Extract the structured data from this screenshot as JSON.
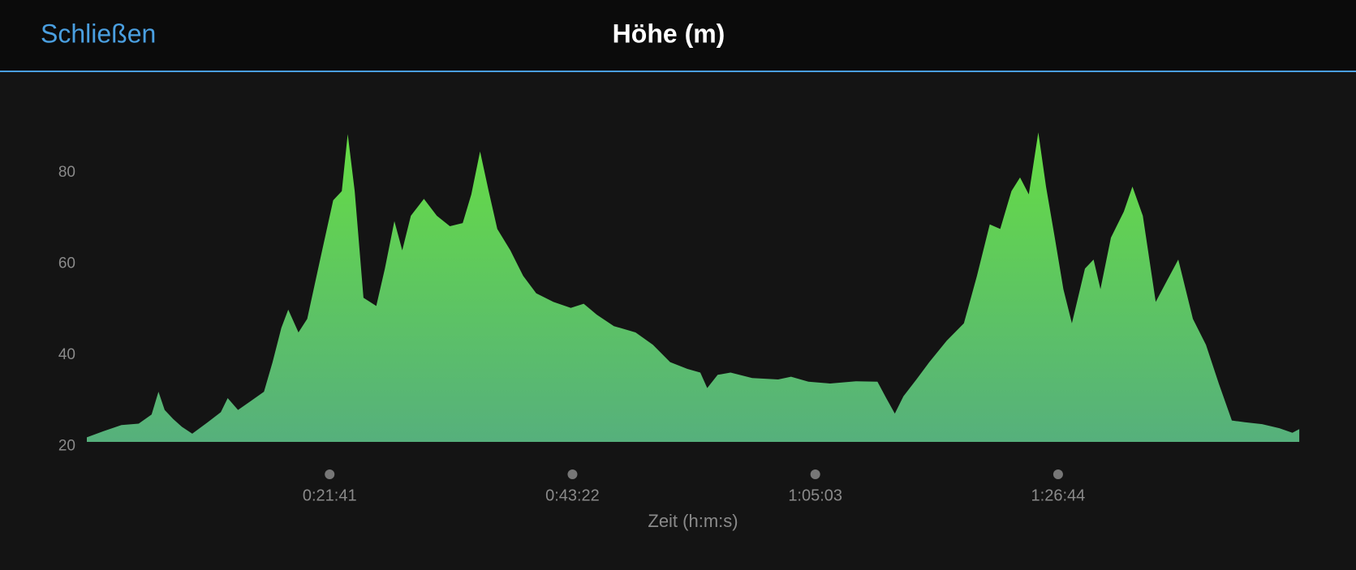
{
  "close_label": "Schließen",
  "chart_data": {
    "type": "area",
    "title": "Höhe (m)",
    "xlabel": "Zeit (h:m:s)",
    "x": [
      0,
      93,
      185,
      278,
      347,
      384,
      417,
      463,
      509,
      565,
      648,
      718,
      755,
      810,
      880,
      949,
      995,
      1042,
      1079,
      1134,
      1181,
      1250,
      1320,
      1366,
      1398,
      1435,
      1482,
      1551,
      1597,
      1648,
      1690,
      1736,
      1806,
      1875,
      1945,
      2014,
      2060,
      2107,
      2153,
      2199,
      2269,
      2338,
      2408,
      2500,
      2593,
      2662,
      2732,
      2824,
      2940,
      3033,
      3125,
      3218,
      3287,
      3324,
      3380,
      3449,
      3565,
      3704,
      3773,
      3866,
      3982,
      4121,
      4236,
      4283,
      4329,
      4375,
      4445,
      4514,
      4607,
      4699,
      4769,
      4838,
      4894,
      4954,
      5000,
      5047,
      5098,
      5139,
      5186,
      5232,
      5278,
      5348,
      5394,
      5431,
      5487,
      5556,
      5602,
      5658,
      5727,
      5788,
      5848,
      5926,
      5996,
      6065,
      6135,
      6204,
      6297,
      6389,
      6459,
      6496
    ],
    "values": [
      22,
      23.4,
      24.7,
      25,
      27,
      32,
      28,
      26,
      24.3,
      22.8,
      25.3,
      27.5,
      30.6,
      28,
      30,
      32,
      38.5,
      46,
      50,
      45,
      48,
      61,
      74,
      76,
      88.5,
      76,
      52.6,
      50.8,
      59,
      69.4,
      63,
      70.6,
      74.3,
      70.6,
      68.3,
      69,
      75.3,
      84.7,
      76,
      67.7,
      63,
      57.4,
      53.6,
      51.7,
      50.4,
      51.3,
      48.9,
      46.4,
      45,
      42.3,
      38.5,
      37,
      36.2,
      32.8,
      35.7,
      36.2,
      35,
      34.7,
      35.3,
      34.2,
      33.8,
      34.3,
      34.2,
      30.6,
      27.2,
      31,
      34.7,
      38.5,
      43.2,
      47,
      57.4,
      68.7,
      67.7,
      76,
      79,
      75.3,
      88.9,
      77,
      65.8,
      54.5,
      47,
      59,
      61,
      54.5,
      65.8,
      71.5,
      77,
      70.6,
      51.7,
      56.4,
      61,
      48,
      42.3,
      33.8,
      25.7,
      25.3,
      24.9,
      24,
      23,
      23.8
    ],
    "color_top": "#66dd44",
    "color_bottom": "#56b07c",
    "xlim": [
      0,
      6500
    ],
    "xticks": [
      {
        "value": 1301,
        "label": "0:21:41"
      },
      {
        "value": 2602,
        "label": "0:43:22"
      },
      {
        "value": 3903,
        "label": "1:05:03"
      },
      {
        "value": 5204,
        "label": "1:26:44"
      }
    ],
    "ylim": [
      21,
      90
    ],
    "yticks": [
      20,
      40,
      60,
      80
    ]
  }
}
